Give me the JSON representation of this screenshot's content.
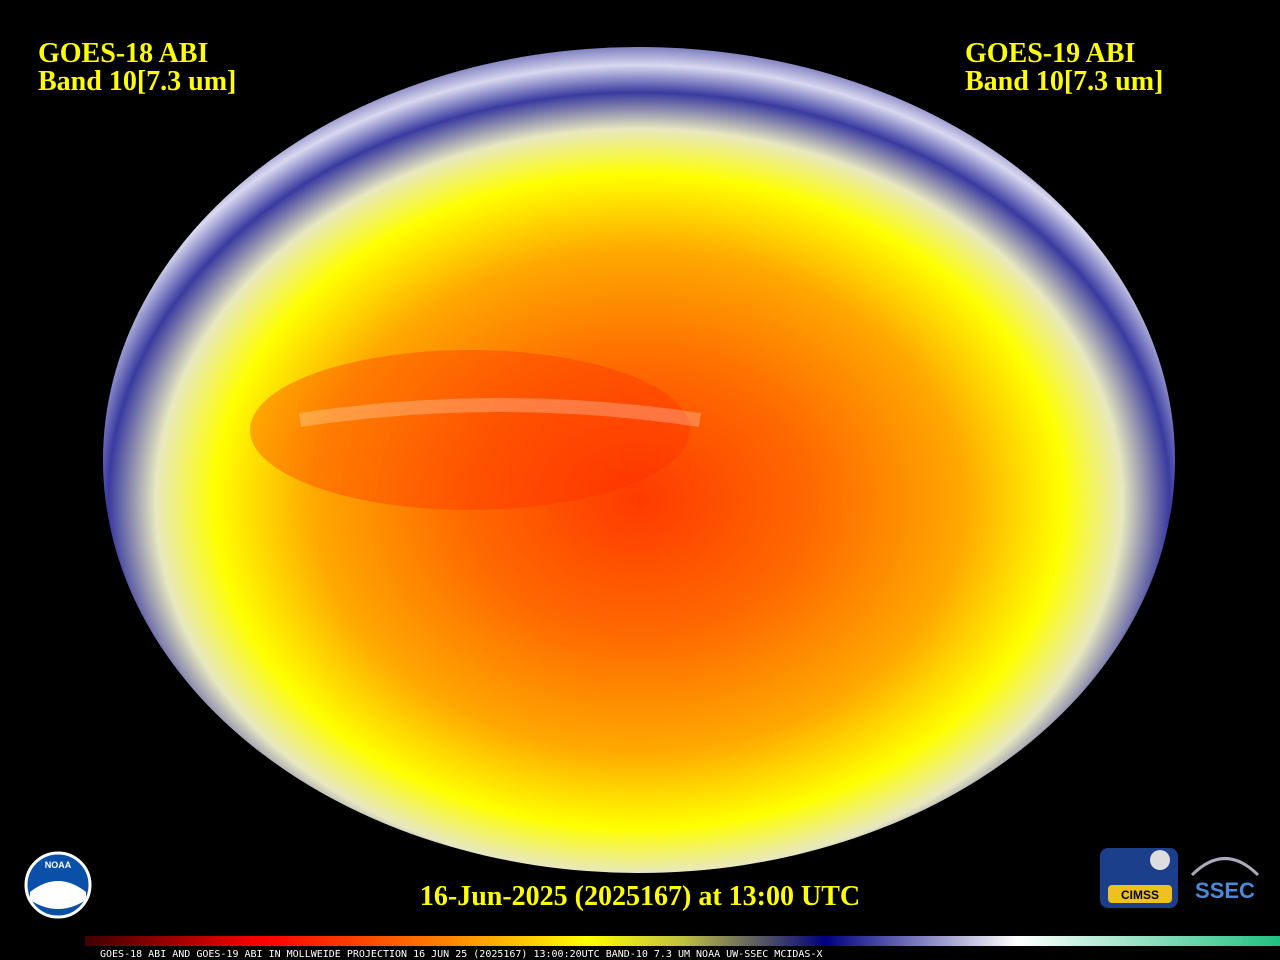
{
  "header": {
    "left": {
      "title": "GOES-18 ABI",
      "band": "Band 10[7.3 um]"
    },
    "right": {
      "title": "GOES-19 ABI",
      "band": "Band 10[7.3 um]"
    }
  },
  "timestamp": "16-Jun-2025 (2025167) at 13:00 UTC",
  "footer": "GOES-18 ABI AND GOES-19 ABI IN MOLLWEIDE PROJECTION 16 JUN 25 (2025167) 13:00:20UTC BAND-10 7.3 UM NOAA UW-SSEC MCIDAS-X",
  "logos": {
    "noaa": "NOAA",
    "cimss": "CIMSS",
    "ssec": "SSEC"
  }
}
